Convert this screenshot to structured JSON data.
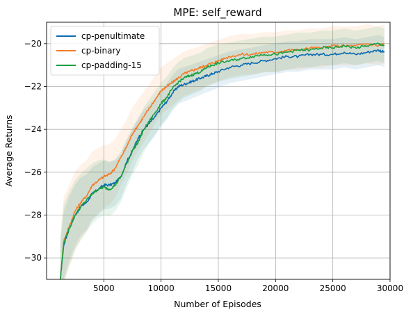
{
  "chart_data": {
    "type": "line",
    "title": "MPE: self_reward",
    "xlabel": "Number of Episodes",
    "ylabel": "Average Returns",
    "xlim": [
      0,
      30000
    ],
    "ylim": [
      -31,
      -19
    ],
    "xticks": [
      5000,
      10000,
      15000,
      20000,
      25000,
      30000
    ],
    "yticks": [
      -30,
      -28,
      -26,
      -24,
      -22,
      -20
    ],
    "grid": true,
    "legend_position": "upper-left",
    "colors": {
      "cp-penultimate": "#0a6bb0",
      "cp-binary": "#f57c2a",
      "cp-padding-15": "#18a040"
    },
    "x": [
      1200,
      1500,
      2000,
      2500,
      3000,
      3500,
      4000,
      4500,
      5000,
      5500,
      6000,
      6500,
      7000,
      7500,
      8000,
      8500,
      9000,
      9500,
      10000,
      10500,
      11000,
      11500,
      12000,
      12500,
      13000,
      13500,
      14000,
      14500,
      15000,
      16000,
      17000,
      18000,
      19000,
      20000,
      21000,
      22000,
      23000,
      24000,
      25000,
      26000,
      27000,
      28000,
      29000,
      29500
    ],
    "series": [
      {
        "name": "cp-penultimate",
        "values": [
          -31.0,
          -29.4,
          -28.6,
          -28.0,
          -27.6,
          -27.4,
          -27.0,
          -26.8,
          -26.6,
          -26.6,
          -26.5,
          -26.2,
          -25.5,
          -25.0,
          -24.4,
          -24.0,
          -23.7,
          -23.4,
          -23.0,
          -22.7,
          -22.3,
          -22.0,
          -21.9,
          -21.8,
          -21.7,
          -21.6,
          -21.5,
          -21.4,
          -21.3,
          -21.1,
          -21.0,
          -20.9,
          -20.8,
          -20.7,
          -20.6,
          -20.6,
          -20.5,
          -20.5,
          -20.5,
          -20.4,
          -20.5,
          -20.4,
          -20.3,
          -20.4
        ],
        "band": 0.7
      },
      {
        "name": "cp-binary",
        "values": [
          -31.0,
          -29.2,
          -28.5,
          -27.8,
          -27.4,
          -27.1,
          -26.6,
          -26.4,
          -26.2,
          -26.1,
          -25.8,
          -25.3,
          -24.8,
          -24.2,
          -23.8,
          -23.4,
          -23.0,
          -22.6,
          -22.2,
          -22.0,
          -21.8,
          -21.6,
          -21.4,
          -21.3,
          -21.2,
          -21.1,
          -21.0,
          -20.9,
          -20.8,
          -20.6,
          -20.5,
          -20.5,
          -20.4,
          -20.4,
          -20.3,
          -20.3,
          -20.2,
          -20.2,
          -20.1,
          -20.1,
          -20.1,
          -20.0,
          -20.1,
          -20.0
        ],
        "band": 0.9
      },
      {
        "name": "cp-padding-15",
        "values": [
          -31.0,
          -29.3,
          -28.6,
          -28.0,
          -27.6,
          -27.3,
          -27.0,
          -26.8,
          -26.7,
          -26.8,
          -26.6,
          -26.2,
          -25.6,
          -25.0,
          -24.6,
          -24.0,
          -23.6,
          -23.2,
          -22.8,
          -22.5,
          -22.1,
          -21.8,
          -21.6,
          -21.5,
          -21.4,
          -21.3,
          -21.1,
          -21.0,
          -20.9,
          -20.8,
          -20.7,
          -20.6,
          -20.5,
          -20.5,
          -20.4,
          -20.3,
          -20.3,
          -20.2,
          -20.2,
          -20.1,
          -20.2,
          -20.1,
          -20.0,
          -20.1
        ],
        "band": 0.8
      }
    ]
  }
}
